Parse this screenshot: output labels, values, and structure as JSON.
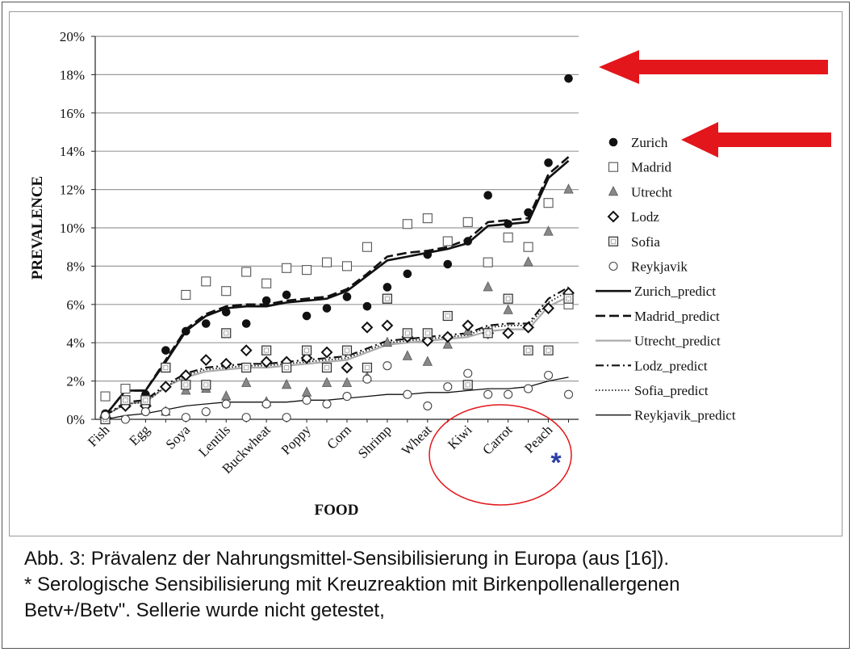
{
  "caption": {
    "line1": "Abb. 3: Prävalenz der Nahrungsmittel-Sensibilisierung in Europa (aus [16]).",
    "line2": "* Serologische Sensibilisierung mit Kreuzreaktion mit Birkenpollenallergenen",
    "line3": "Betv+/Betv\". Sellerie wurde nicht getestet,"
  },
  "annotation": {
    "asterisk": "*"
  },
  "colors": {
    "arrow": "#e3161b",
    "circle": "#e3161b",
    "asterisk": "#2b3ea6",
    "grid": "#9a9a9a"
  },
  "chart_data": {
    "type": "scatter",
    "title": "",
    "xlabel": "FOOD",
    "ylabel": "PREVALENCE",
    "ylim": [
      0,
      0.2
    ],
    "yticks": [
      "0%",
      "2%",
      "4%",
      "6%",
      "8%",
      "10%",
      "12%",
      "14%",
      "16%",
      "18%",
      "20%"
    ],
    "categories": [
      "Fish",
      "",
      "Egg",
      "",
      "Soya",
      "",
      "Lentils",
      "",
      "Buckwheat",
      "",
      "Poppy",
      "",
      "Corn",
      "",
      "Shrimp",
      "",
      "Wheat",
      "",
      "Kiwi",
      "",
      "Carrot",
      "",
      "Peach",
      ""
    ],
    "x_labels_shown": [
      "Fish",
      "Egg",
      "Soya",
      "Lentils",
      "Buckwheat",
      "Poppy",
      "Corn",
      "Shrimp",
      "Wheat",
      "Kiwi",
      "Carrot",
      "Peach"
    ],
    "grid": true,
    "legend_position": "right",
    "series": [
      {
        "name": "Zurich",
        "marker": "filled-circle",
        "values": [
          0.003,
          0.007,
          0.013,
          0.036,
          0.046,
          0.05,
          0.056,
          0.05,
          0.062,
          0.065,
          0.054,
          0.058,
          0.064,
          0.059,
          0.069,
          0.076,
          0.086,
          0.081,
          0.093,
          0.117,
          0.102,
          0.108,
          0.134,
          0.178
        ]
      },
      {
        "name": "Madrid",
        "marker": "open-square",
        "values": [
          0.012,
          0.016,
          0.01,
          0.027,
          0.065,
          0.072,
          0.067,
          0.077,
          0.071,
          0.079,
          0.078,
          0.082,
          0.08,
          0.09,
          0.063,
          0.102,
          0.105,
          0.093,
          0.103,
          0.082,
          0.095,
          0.09,
          0.113,
          0.06
        ]
      },
      {
        "name": "Utrecht",
        "marker": "filled-triangle",
        "values": [
          0.001,
          0.008,
          0.006,
          0.004,
          0.015,
          0.016,
          0.012,
          0.019,
          0.009,
          0.018,
          0.014,
          0.019,
          0.019,
          0.022,
          0.04,
          0.033,
          0.03,
          0.039,
          0.046,
          0.069,
          0.057,
          0.082,
          0.098,
          0.12
        ]
      },
      {
        "name": "Lodz",
        "marker": "open-diamond",
        "values": [
          0.001,
          0.007,
          0.007,
          0.017,
          0.023,
          0.031,
          0.029,
          0.036,
          0.03,
          0.03,
          0.032,
          0.035,
          0.027,
          0.048,
          0.049,
          0.043,
          0.041,
          0.043,
          0.049,
          0.045,
          0.045,
          0.048,
          0.058,
          0.066
        ]
      },
      {
        "name": "Sofia",
        "marker": "dotted-square",
        "values": [
          0.0,
          0.01,
          0.01,
          0.027,
          0.018,
          0.018,
          0.045,
          0.027,
          0.036,
          0.027,
          0.036,
          0.027,
          0.036,
          0.027,
          0.063,
          0.045,
          0.045,
          0.054,
          0.018,
          0.045,
          0.063,
          0.036,
          0.036,
          0.063
        ]
      },
      {
        "name": "Reykjavik",
        "marker": "open-circle",
        "values": [
          0.002,
          0.0,
          0.004,
          0.004,
          0.001,
          0.004,
          0.008,
          0.001,
          0.008,
          0.001,
          0.01,
          0.008,
          0.012,
          0.021,
          0.028,
          0.013,
          0.007,
          0.017,
          0.024,
          0.013,
          0.013,
          0.016,
          0.023,
          0.013
        ]
      },
      {
        "name": "Zurich_predict",
        "line": "solid-thick",
        "values": [
          0.002,
          0.015,
          0.015,
          0.03,
          0.046,
          0.054,
          0.058,
          0.059,
          0.059,
          0.061,
          0.062,
          0.063,
          0.067,
          0.075,
          0.083,
          0.085,
          0.087,
          0.089,
          0.092,
          0.101,
          0.102,
          0.103,
          0.126,
          0.135
        ]
      },
      {
        "name": "Madrid_predict",
        "line": "dashed",
        "values": [
          0.002,
          0.015,
          0.015,
          0.031,
          0.047,
          0.055,
          0.059,
          0.06,
          0.06,
          0.062,
          0.063,
          0.064,
          0.068,
          0.076,
          0.085,
          0.087,
          0.088,
          0.09,
          0.094,
          0.103,
          0.104,
          0.105,
          0.128,
          0.137
        ]
      },
      {
        "name": "Utrecht_predict",
        "line": "solid-gray",
        "values": [
          0.002,
          0.008,
          0.009,
          0.017,
          0.022,
          0.025,
          0.026,
          0.027,
          0.027,
          0.028,
          0.029,
          0.03,
          0.031,
          0.035,
          0.039,
          0.04,
          0.041,
          0.042,
          0.043,
          0.046,
          0.047,
          0.047,
          0.059,
          0.064
        ]
      },
      {
        "name": "Lodz_predict",
        "line": "dash-dot",
        "values": [
          0.002,
          0.009,
          0.01,
          0.018,
          0.024,
          0.027,
          0.028,
          0.029,
          0.029,
          0.03,
          0.031,
          0.032,
          0.033,
          0.037,
          0.041,
          0.042,
          0.043,
          0.044,
          0.045,
          0.049,
          0.05,
          0.05,
          0.063,
          0.069
        ]
      },
      {
        "name": "Sofia_predict",
        "line": "dotted",
        "values": [
          0.002,
          0.008,
          0.009,
          0.017,
          0.023,
          0.026,
          0.027,
          0.028,
          0.028,
          0.029,
          0.03,
          0.031,
          0.032,
          0.036,
          0.04,
          0.041,
          0.042,
          0.043,
          0.044,
          0.048,
          0.049,
          0.049,
          0.061,
          0.067
        ]
      },
      {
        "name": "Reykjavik_predict",
        "line": "solid-thin",
        "values": [
          0.0,
          0.002,
          0.003,
          0.005,
          0.007,
          0.008,
          0.009,
          0.009,
          0.009,
          0.009,
          0.01,
          0.01,
          0.011,
          0.012,
          0.013,
          0.013,
          0.014,
          0.014,
          0.015,
          0.016,
          0.016,
          0.017,
          0.02,
          0.022
        ]
      }
    ]
  }
}
